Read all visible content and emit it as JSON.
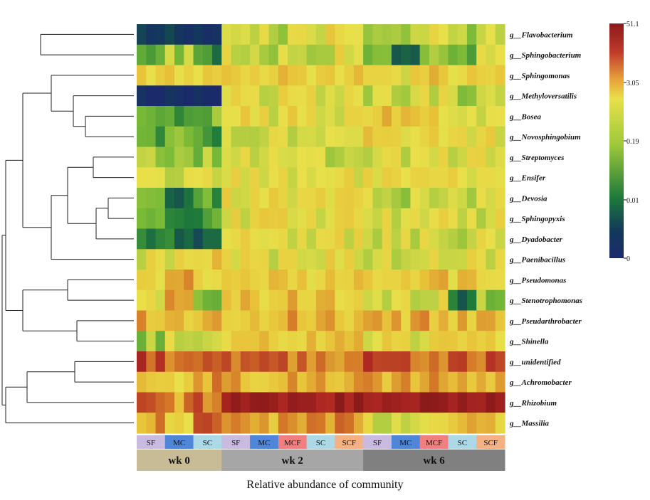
{
  "chart_data": {
    "type": "heatmap",
    "xlabel": "Relative  abundance of community",
    "genera": [
      "g__Flavobacterium",
      "g__Sphingobacterium",
      "g__Sphingomonas",
      "g__Methyloversatilis",
      "g__Bosea",
      "g__Novosphingobium",
      "g__Streptomyces",
      "g__Ensifer",
      "g__Devosia",
      "g__Sphingopyxis",
      "g__Dyadobacter",
      "g__Paenibacillus",
      "g__Pseudomonas",
      "g__Stenotrophomonas",
      "g__Pseudarthrobacter",
      "g__Shinella",
      "g__unidentified",
      "g__Achromobacter",
      "g__Rhizobium",
      "g__Massilia"
    ],
    "groups": [
      {
        "label": "SF",
        "color": "#c9bbe0"
      },
      {
        "label": "MC",
        "color": "#4f86d8"
      },
      {
        "label": "SC",
        "color": "#add8e6"
      },
      {
        "label": "SF",
        "color": "#c9bbe0"
      },
      {
        "label": "MC",
        "color": "#4f86d8"
      },
      {
        "label": "MCF",
        "color": "#f08080"
      },
      {
        "label": "SC",
        "color": "#add8e6"
      },
      {
        "label": "SCF",
        "color": "#f4b183"
      },
      {
        "label": "SF",
        "color": "#c9bbe0"
      },
      {
        "label": "MC",
        "color": "#4f86d8"
      },
      {
        "label": "MCF",
        "color": "#f08080"
      },
      {
        "label": "SC",
        "color": "#add8e6"
      },
      {
        "label": "SCF",
        "color": "#f4b183"
      }
    ],
    "timepoints": [
      {
        "label": "wk 0",
        "color": "#c8bc96"
      },
      {
        "label": "wk 2",
        "color": "#a6a6a6"
      },
      {
        "label": "wk 6",
        "color": "#808080"
      }
    ],
    "samples_per_group": 3,
    "colorbar": {
      "ticks": [
        "51.1",
        "3.05",
        "0.19",
        "0.01",
        "0"
      ],
      "colors": [
        "#8b1a1a",
        "#c0392b",
        "#e8a33a",
        "#e8e04a",
        "#9cc83a",
        "#1e7a3a",
        "#123a5a",
        "#1b2a6b"
      ]
    },
    "abundance_level_by_genus_group": [
      [
        0.15,
        0.08,
        0.05,
        0.6,
        0.55,
        0.5,
        0.58,
        0.6,
        0.5,
        0.45,
        0.55,
        0.45,
        0.52
      ],
      [
        0.4,
        0.45,
        0.3,
        0.55,
        0.45,
        0.55,
        0.5,
        0.55,
        0.35,
        0.25,
        0.45,
        0.4,
        0.52
      ],
      [
        0.62,
        0.6,
        0.62,
        0.62,
        0.6,
        0.62,
        0.6,
        0.62,
        0.6,
        0.58,
        0.62,
        0.6,
        0.62
      ],
      [
        0.02,
        0.02,
        0.02,
        0.58,
        0.55,
        0.57,
        0.55,
        0.58,
        0.5,
        0.45,
        0.52,
        0.48,
        0.5
      ],
      [
        0.4,
        0.3,
        0.4,
        0.58,
        0.56,
        0.58,
        0.57,
        0.56,
        0.63,
        0.6,
        0.6,
        0.58,
        0.58
      ],
      [
        0.35,
        0.4,
        0.3,
        0.55,
        0.55,
        0.55,
        0.56,
        0.55,
        0.6,
        0.57,
        0.58,
        0.57,
        0.58
      ],
      [
        0.5,
        0.42,
        0.45,
        0.56,
        0.55,
        0.55,
        0.52,
        0.55,
        0.55,
        0.53,
        0.55,
        0.55,
        0.55
      ],
      [
        0.55,
        0.52,
        0.52,
        0.56,
        0.56,
        0.56,
        0.55,
        0.56,
        0.56,
        0.55,
        0.56,
        0.56,
        0.55
      ],
      [
        0.35,
        0.25,
        0.35,
        0.57,
        0.58,
        0.57,
        0.57,
        0.58,
        0.52,
        0.5,
        0.55,
        0.52,
        0.54
      ],
      [
        0.35,
        0.3,
        0.32,
        0.57,
        0.57,
        0.57,
        0.56,
        0.57,
        0.53,
        0.52,
        0.55,
        0.53,
        0.54
      ],
      [
        0.25,
        0.25,
        0.2,
        0.56,
        0.55,
        0.57,
        0.57,
        0.56,
        0.52,
        0.52,
        0.55,
        0.52,
        0.52
      ],
      [
        0.55,
        0.55,
        0.62,
        0.56,
        0.55,
        0.57,
        0.57,
        0.56,
        0.55,
        0.5,
        0.58,
        0.57,
        0.56
      ],
      [
        0.6,
        0.7,
        0.6,
        0.62,
        0.6,
        0.62,
        0.62,
        0.62,
        0.65,
        0.62,
        0.63,
        0.62,
        0.63
      ],
      [
        0.55,
        0.7,
        0.45,
        0.65,
        0.62,
        0.65,
        0.62,
        0.62,
        0.55,
        0.52,
        0.55,
        0.25,
        0.45
      ],
      [
        0.7,
        0.65,
        0.66,
        0.66,
        0.66,
        0.68,
        0.66,
        0.66,
        0.67,
        0.66,
        0.68,
        0.66,
        0.67
      ],
      [
        0.45,
        0.55,
        0.5,
        0.62,
        0.62,
        0.64,
        0.62,
        0.63,
        0.58,
        0.57,
        0.6,
        0.58,
        0.6
      ],
      [
        0.82,
        0.75,
        0.76,
        0.76,
        0.78,
        0.78,
        0.76,
        0.77,
        0.78,
        0.78,
        0.78,
        0.78,
        0.78
      ],
      [
        0.62,
        0.58,
        0.7,
        0.68,
        0.66,
        0.7,
        0.68,
        0.68,
        0.7,
        0.68,
        0.7,
        0.7,
        0.7
      ],
      [
        0.75,
        0.72,
        0.78,
        0.92,
        0.93,
        0.92,
        0.92,
        0.93,
        0.92,
        0.9,
        0.92,
        0.92,
        0.92
      ],
      [
        0.7,
        0.6,
        0.78,
        0.72,
        0.65,
        0.75,
        0.7,
        0.72,
        0.55,
        0.55,
        0.62,
        0.65,
        0.65
      ]
    ]
  }
}
